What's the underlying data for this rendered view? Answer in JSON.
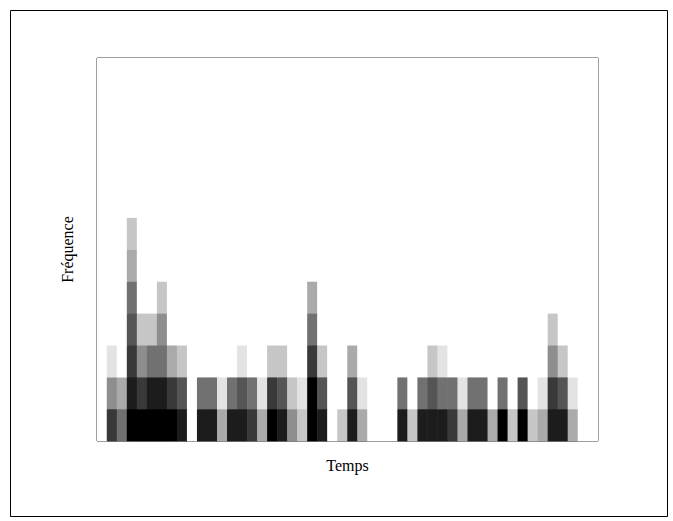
{
  "chart_data": {
    "type": "heatmap",
    "x_label": "Temps",
    "y_label": "Fréquence",
    "tick_labels": false,
    "grid": false,
    "color": "#000000",
    "color_range": [
      0,
      9
    ],
    "cells": [
      [
        0,
        7,
        5,
        9,
        9,
        9,
        9,
        9,
        8,
        0,
        8,
        8,
        3,
        8,
        8,
        7,
        3,
        9,
        8,
        4,
        2,
        9,
        8,
        0,
        2,
        8,
        3,
        0,
        0,
        0,
        8,
        2,
        8,
        8,
        8,
        7,
        3,
        8,
        8,
        3,
        9,
        2,
        9,
        2,
        3,
        8,
        8,
        3,
        0,
        0
      ],
      [
        0,
        4,
        3,
        8,
        7,
        8,
        8,
        7,
        6,
        0,
        5,
        5,
        1,
        5,
        6,
        5,
        1,
        7,
        6,
        2,
        1,
        9,
        6,
        0,
        0,
        6,
        1,
        0,
        0,
        0,
        5,
        0,
        5,
        6,
        5,
        5,
        1,
        5,
        5,
        0,
        5,
        0,
        6,
        0,
        1,
        7,
        6,
        1,
        0,
        0
      ],
      [
        0,
        1,
        0,
        7,
        4,
        5,
        5,
        3,
        2,
        0,
        0,
        0,
        0,
        0,
        1,
        0,
        0,
        2,
        2,
        0,
        0,
        7,
        2,
        0,
        0,
        3,
        0,
        0,
        0,
        0,
        0,
        0,
        0,
        2,
        1,
        0,
        0,
        0,
        0,
        0,
        0,
        0,
        0,
        0,
        0,
        4,
        2,
        0,
        0,
        0
      ],
      [
        0,
        0,
        0,
        6,
        2,
        2,
        4,
        0,
        0,
        0,
        0,
        0,
        0,
        0,
        0,
        0,
        0,
        0,
        0,
        0,
        0,
        5,
        0,
        0,
        0,
        0,
        0,
        0,
        0,
        0,
        0,
        0,
        0,
        0,
        0,
        0,
        0,
        0,
        0,
        0,
        0,
        0,
        0,
        0,
        0,
        2,
        0,
        0,
        0,
        0
      ],
      [
        0,
        0,
        0,
        5,
        0,
        0,
        2,
        0,
        0,
        0,
        0,
        0,
        0,
        0,
        0,
        0,
        0,
        0,
        0,
        0,
        0,
        3,
        0,
        0,
        0,
        0,
        0,
        0,
        0,
        0,
        0,
        0,
        0,
        0,
        0,
        0,
        0,
        0,
        0,
        0,
        0,
        0,
        0,
        0,
        0,
        0,
        0,
        0,
        0,
        0
      ],
      [
        0,
        0,
        0,
        3,
        0,
        0,
        0,
        0,
        0,
        0,
        0,
        0,
        0,
        0,
        0,
        0,
        0,
        0,
        0,
        0,
        0,
        0,
        0,
        0,
        0,
        0,
        0,
        0,
        0,
        0,
        0,
        0,
        0,
        0,
        0,
        0,
        0,
        0,
        0,
        0,
        0,
        0,
        0,
        0,
        0,
        0,
        0,
        0,
        0,
        0
      ],
      [
        0,
        0,
        0,
        2,
        0,
        0,
        0,
        0,
        0,
        0,
        0,
        0,
        0,
        0,
        0,
        0,
        0,
        0,
        0,
        0,
        0,
        0,
        0,
        0,
        0,
        0,
        0,
        0,
        0,
        0,
        0,
        0,
        0,
        0,
        0,
        0,
        0,
        0,
        0,
        0,
        0,
        0,
        0,
        0,
        0,
        0,
        0,
        0,
        0,
        0
      ],
      [
        0,
        0,
        0,
        0,
        0,
        0,
        0,
        0,
        0,
        0,
        0,
        0,
        0,
        0,
        0,
        0,
        0,
        0,
        0,
        0,
        0,
        0,
        0,
        0,
        0,
        0,
        0,
        0,
        0,
        0,
        0,
        0,
        0,
        0,
        0,
        0,
        0,
        0,
        0,
        0,
        0,
        0,
        0,
        0,
        0,
        0,
        0,
        0,
        0,
        0
      ],
      [
        0,
        0,
        0,
        0,
        0,
        0,
        0,
        0,
        0,
        0,
        0,
        0,
        0,
        0,
        0,
        0,
        0,
        0,
        0,
        0,
        0,
        0,
        0,
        0,
        0,
        0,
        0,
        0,
        0,
        0,
        0,
        0,
        0,
        0,
        0,
        0,
        0,
        0,
        0,
        0,
        0,
        0,
        0,
        0,
        0,
        0,
        0,
        0,
        0,
        0
      ],
      [
        0,
        0,
        0,
        0,
        0,
        0,
        0,
        0,
        0,
        0,
        0,
        0,
        0,
        0,
        0,
        0,
        0,
        0,
        0,
        0,
        0,
        0,
        0,
        0,
        0,
        0,
        0,
        0,
        0,
        0,
        0,
        0,
        0,
        0,
        0,
        0,
        0,
        0,
        0,
        0,
        0,
        0,
        0,
        0,
        0,
        0,
        0,
        0,
        0,
        0
      ],
      [
        0,
        0,
        0,
        0,
        0,
        0,
        0,
        0,
        0,
        0,
        0,
        0,
        0,
        0,
        0,
        0,
        0,
        0,
        0,
        0,
        0,
        0,
        0,
        0,
        0,
        0,
        0,
        0,
        0,
        0,
        0,
        0,
        0,
        0,
        0,
        0,
        0,
        0,
        0,
        0,
        0,
        0,
        0,
        0,
        0,
        0,
        0,
        0,
        0,
        0
      ],
      [
        0,
        0,
        0,
        0,
        0,
        0,
        0,
        0,
        0,
        0,
        0,
        0,
        0,
        0,
        0,
        0,
        0,
        0,
        0,
        0,
        0,
        0,
        0,
        0,
        0,
        0,
        0,
        0,
        0,
        0,
        0,
        0,
        0,
        0,
        0,
        0,
        0,
        0,
        0,
        0,
        0,
        0,
        0,
        0,
        0,
        0,
        0,
        0,
        0,
        0
      ]
    ]
  }
}
